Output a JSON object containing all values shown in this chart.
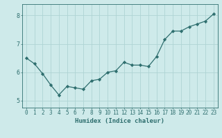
{
  "x": [
    0,
    1,
    2,
    3,
    4,
    5,
    6,
    7,
    8,
    9,
    10,
    11,
    12,
    13,
    14,
    15,
    16,
    17,
    18,
    19,
    20,
    21,
    22,
    23
  ],
  "y": [
    6.5,
    6.3,
    5.95,
    5.55,
    5.2,
    5.5,
    5.45,
    5.4,
    5.7,
    5.75,
    6.0,
    6.05,
    6.35,
    6.25,
    6.25,
    6.2,
    6.55,
    7.15,
    7.45,
    7.45,
    7.6,
    7.7,
    7.8,
    8.05
  ],
  "line_color": "#2e6e6e",
  "marker": "D",
  "marker_size": 2.2,
  "bg_color": "#ceeaea",
  "grid_color": "#aed4d4",
  "xlabel": "Humidex (Indice chaleur)",
  "ylim": [
    4.75,
    8.4
  ],
  "xlim": [
    -0.5,
    23.5
  ],
  "yticks": [
    5,
    6,
    7,
    8
  ],
  "xticks": [
    0,
    1,
    2,
    3,
    4,
    5,
    6,
    7,
    8,
    9,
    10,
    11,
    12,
    13,
    14,
    15,
    16,
    17,
    18,
    19,
    20,
    21,
    22,
    23
  ],
  "label_fontsize": 6.5,
  "tick_fontsize": 5.5
}
